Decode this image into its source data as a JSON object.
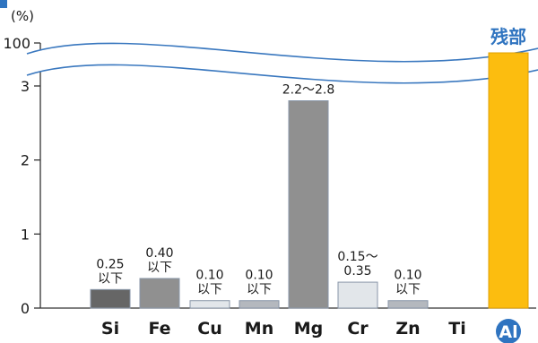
{
  "chart_data": {
    "type": "bar",
    "unit_label": "(%)",
    "y_ticks": [
      "0",
      "1",
      "2",
      "3"
    ],
    "y_break_tick": "100",
    "ylim": [
      0,
      3
    ],
    "categories": [
      "Si",
      "Fe",
      "Cu",
      "Mn",
      "Mg",
      "Cr",
      "Zn",
      "Ti",
      "Al"
    ],
    "values": [
      0.25,
      0.4,
      0.1,
      0.1,
      2.8,
      0.35,
      0.1,
      null,
      100
    ],
    "range_low": [
      null,
      null,
      null,
      null,
      2.2,
      0.15,
      null,
      null,
      null
    ],
    "data_labels": [
      [
        "0.25",
        "以下"
      ],
      [
        "0.40",
        "以下"
      ],
      [
        "0.10",
        "以下"
      ],
      [
        "0.10",
        "以下"
      ],
      [
        "2.2～2.8"
      ],
      [
        "0.15～",
        "0.35"
      ],
      [
        "0.10",
        "以下"
      ],
      [],
      [
        "残部"
      ]
    ],
    "colors": [
      "#666666",
      "#909090",
      "#e2e6ea",
      "#b4b8be",
      "#909090",
      "#e2e6ea",
      "#b4b8be",
      null,
      "#fcbd0f"
    ],
    "grid": false,
    "axis_break": true
  }
}
